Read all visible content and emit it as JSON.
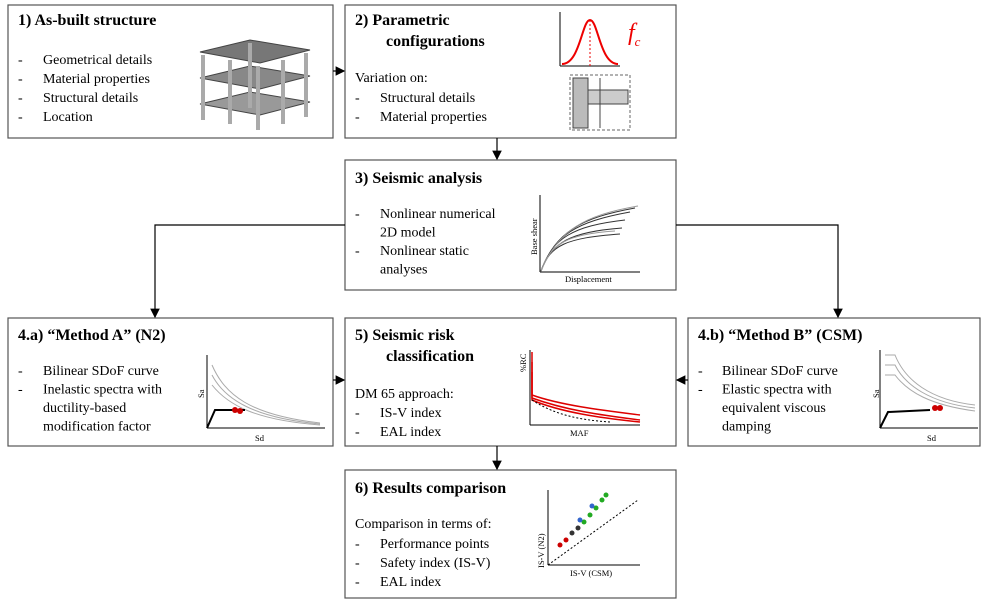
{
  "boxes": [
    {
      "title": "1)  As-built structure",
      "items": [
        [
          "Geometrical details"
        ],
        [
          "Material properties"
        ],
        [
          "Structural details"
        ],
        [
          "Location"
        ]
      ]
    },
    {
      "title_lines": [
        "2)  Parametric",
        "configurations"
      ],
      "symbol": {
        "base": "f",
        "subscript": "c"
      },
      "intro": "Variation on:",
      "items": [
        [
          "Structural details"
        ],
        [
          "Material properties"
        ]
      ]
    },
    {
      "title": "3)  Seismic analysis",
      "items": [
        [
          "Nonlinear numerical",
          "2D model"
        ],
        [
          "Nonlinear static",
          "analyses"
        ]
      ],
      "plot": {
        "y_label": "Base shear",
        "x_label": "Displacement"
      }
    },
    {
      "title": "4.a)  “Method A” (N2)",
      "items": [
        [
          "Bilinear SDoF curve"
        ],
        [
          "Inelastic spectra with",
          "ductility-based",
          "modification factor"
        ]
      ],
      "plot": {
        "y_label": "Sa",
        "x_label": "Sd"
      }
    },
    {
      "title_lines": [
        "5)  Seismic risk",
        "classification"
      ],
      "intro": "DM 65 approach:",
      "items": [
        [
          "IS-V index"
        ],
        [
          "EAL index"
        ]
      ],
      "plot": {
        "y_label": "%RC",
        "x_label": "MAF"
      }
    },
    {
      "title": "4.b)  “Method B” (CSM)",
      "items": [
        [
          "Bilinear SDoF curve"
        ],
        [
          "Elastic spectra with",
          "equivalent viscous",
          "damping"
        ]
      ],
      "plot": {
        "y_label": "Sa",
        "x_label": "Sd"
      }
    },
    {
      "title": "6)  Results comparison",
      "intro": "Comparison in terms of:",
      "items": [
        [
          "Performance points"
        ],
        [
          "Safety index (IS-V)"
        ],
        [
          "EAL index"
        ]
      ],
      "plot": {
        "y_label": "IS-V (N2)",
        "x_label": "IS-V (CSM)"
      }
    }
  ],
  "bullet": "-"
}
